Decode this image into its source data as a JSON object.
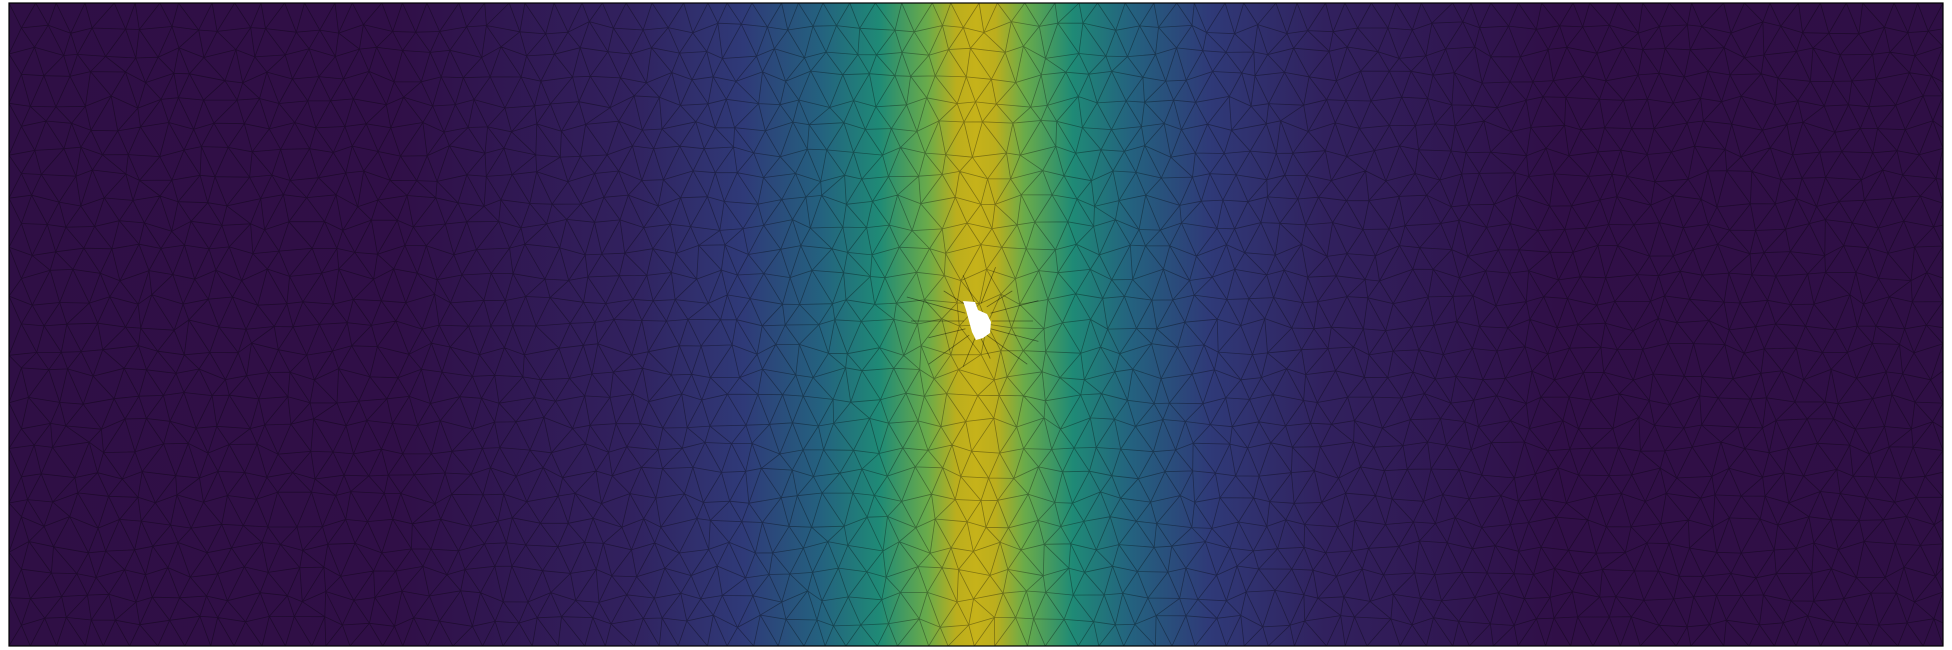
{
  "figure": {
    "kind": "triangulated-mesh-scalar-field",
    "colormap": "viridis",
    "colors": {
      "low": "#2f0f45",
      "mid_low": "#2f2b6a",
      "mid": "#23587f",
      "mid_high": "#1f8a76",
      "high": "#c6b21a",
      "mesh_line": "#000000",
      "background": "#ffffff",
      "hole": "#ffffff"
    },
    "field": {
      "peak_band_center_fraction": 0.5,
      "peak_band_width_fraction": 0.045,
      "feature": "small-hole-at-center"
    }
  }
}
